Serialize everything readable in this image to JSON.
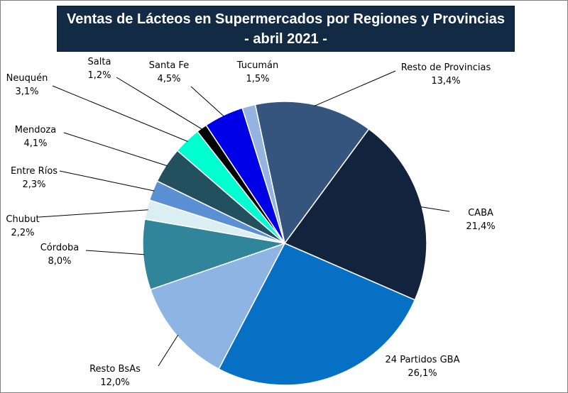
{
  "chart_data": {
    "type": "pie",
    "title": "Ventas de Lácteos en Supermercados por Regiones y Provincias",
    "subtitle": "- abril 2021 -",
    "slices": [
      {
        "name": "Resto de Provincias",
        "value": 13.4,
        "label": "13,4%",
        "color": "#35557f"
      },
      {
        "name": "CABA",
        "value": 21.4,
        "label": "21,4%",
        "color": "#12233d"
      },
      {
        "name": "24 Partidos GBA",
        "value": 26.1,
        "label": "26,1%",
        "color": "#0670c4"
      },
      {
        "name": "Resto BsAs",
        "value": 12.0,
        "label": "12,0%",
        "color": "#8db4e2"
      },
      {
        "name": "Córdoba",
        "value": 8.0,
        "label": "8,0%",
        "color": "#30859b"
      },
      {
        "name": "Chubut",
        "value": 2.2,
        "label": "2,2%",
        "color": "#daeef3"
      },
      {
        "name": "Entre Ríos",
        "value": 2.3,
        "label": "2,3%",
        "color": "#5a8fd4"
      },
      {
        "name": "Mendoza",
        "value": 4.1,
        "label": "4,1%",
        "color": "#23505e"
      },
      {
        "name": "Neuquén",
        "value": 3.1,
        "label": "3,1%",
        "color": "#00ffd0"
      },
      {
        "name": "Salta",
        "value": 1.2,
        "label": "1,2%",
        "color": "#000000"
      },
      {
        "name": "Santa Fe",
        "value": 4.5,
        "label": "4,5%",
        "color": "#0000e6"
      },
      {
        "name": "Tucumán",
        "value": 1.5,
        "label": "1,5%",
        "color": "#95b3e0"
      }
    ]
  }
}
